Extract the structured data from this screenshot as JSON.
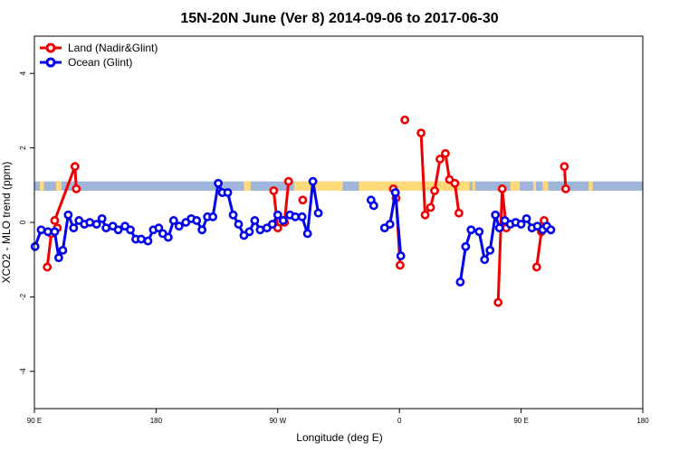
{
  "chart_data": {
    "type": "line",
    "title": "15N-20N June (Ver 8)   2014-09-06 to 2017-06-30",
    "xlabel": "Longitude (deg E)",
    "ylabel": "XCO2 - MLO trend (ppm)",
    "xlim": [
      90,
      450
    ],
    "ylim": [
      -5,
      5
    ],
    "x_ticks": [
      {
        "value": 90,
        "label": "90 E"
      },
      {
        "value": 180,
        "label": "180"
      },
      {
        "value": 270,
        "label": "90 W"
      },
      {
        "value": 360,
        "label": "0"
      },
      {
        "value": 450,
        "label": "90 E"
      },
      {
        "value": 540,
        "label": "180"
      }
    ],
    "x_range_display": [
      90,
      540
    ],
    "y_ticks": [
      {
        "value": -4,
        "label": "-4"
      },
      {
        "value": -2,
        "label": "-2"
      },
      {
        "value": 0,
        "label": "0"
      },
      {
        "value": 2,
        "label": "2"
      },
      {
        "value": 4,
        "label": "4"
      }
    ],
    "legend": {
      "position": "top-left",
      "entries": [
        {
          "label": "Land (Nadir&Glint)",
          "color": "#ee0000"
        },
        {
          "label": "Ocean (Glint)",
          "color": "#0000ee"
        }
      ]
    },
    "land_mask_band": {
      "y_range": [
        0.85,
        1.1
      ],
      "ocean_color": "#9fb6da",
      "land_color": "#ffd97a",
      "land_segments_x": [
        [
          94,
          97
        ],
        [
          106,
          110
        ],
        [
          226,
          228
        ],
        [
          245,
          250
        ],
        [
          282,
          318
        ],
        [
          330,
          412
        ],
        [
          414,
          416
        ],
        [
          442,
          449
        ],
        [
          459,
          461
        ],
        [
          466,
          470
        ],
        [
          500,
          503
        ]
      ]
    },
    "series": [
      {
        "name": "Land (Nadir&Glint)",
        "color": "#ee0000",
        "segments": [
          [
            [
              99.5,
              -1.2
            ],
            [
              102.5,
              -0.3
            ],
            [
              107,
              -0.15
            ]
          ],
          [
            [
              105,
              0.05
            ],
            [
              120,
              1.5
            ],
            [
              121,
              0.9
            ]
          ],
          [
            [
              267,
              0.85
            ],
            [
              270,
              -0.15
            ],
            [
              275,
              0.0
            ],
            [
              278,
              1.1
            ]
          ],
          [
            [
              288.5,
              0.6
            ]
          ],
          [
            [
              355.5,
              0.9
            ],
            [
              357.5,
              0.65
            ],
            [
              360.5,
              -1.15
            ]
          ],
          [
            [
              364,
              2.75
            ]
          ],
          [
            [
              376,
              2.4
            ],
            [
              379,
              0.2
            ],
            [
              383,
              0.4
            ],
            [
              386,
              0.85
            ],
            [
              390,
              1.7
            ],
            [
              394,
              1.85
            ],
            [
              397,
              1.15
            ],
            [
              401,
              1.05
            ],
            [
              404,
              0.25
            ]
          ],
          [
            [
              433,
              -2.15
            ],
            [
              436,
              0.9
            ],
            [
              439,
              -0.15
            ]
          ],
          [
            [
              461.5,
              -1.2
            ],
            [
              465,
              -0.25
            ],
            [
              467,
              0.05
            ]
          ],
          [
            [
              482,
              1.5
            ],
            [
              483,
              0.9
            ]
          ]
        ]
      },
      {
        "name": "Ocean (Glint)",
        "color": "#0000ee",
        "segments": [
          [
            [
              90.5,
              -0.65
            ],
            [
              95,
              -0.2
            ],
            [
              100,
              -0.25
            ],
            [
              105,
              -0.25
            ],
            [
              108,
              -0.95
            ],
            [
              111,
              -0.75
            ],
            [
              115,
              0.2
            ],
            [
              119,
              -0.15
            ],
            [
              123,
              0.05
            ],
            [
              127,
              -0.05
            ],
            [
              131,
              0.0
            ],
            [
              136,
              -0.05
            ],
            [
              140,
              0.1
            ],
            [
              143,
              -0.15
            ],
            [
              148,
              -0.1
            ],
            [
              152,
              -0.2
            ],
            [
              157,
              -0.1
            ],
            [
              161,
              -0.2
            ],
            [
              165,
              -0.45
            ],
            [
              169,
              -0.45
            ],
            [
              174,
              -0.5
            ],
            [
              178,
              -0.2
            ],
            [
              182,
              -0.15
            ],
            [
              185,
              -0.3
            ],
            [
              189,
              -0.4
            ],
            [
              193,
              0.05
            ],
            [
              197,
              -0.1
            ],
            [
              202,
              0.0
            ],
            [
              206,
              0.1
            ],
            [
              210,
              0.05
            ],
            [
              214,
              -0.2
            ],
            [
              218,
              0.15
            ],
            [
              222,
              0.15
            ],
            [
              226,
              1.05
            ],
            [
              229,
              0.8
            ],
            [
              233,
              0.8
            ],
            [
              237,
              0.2
            ],
            [
              241,
              -0.05
            ],
            [
              245,
              -0.35
            ],
            [
              249,
              -0.25
            ],
            [
              253,
              0.05
            ],
            [
              257,
              -0.2
            ],
            [
              262,
              -0.15
            ],
            [
              266,
              -0.05
            ],
            [
              270,
              0.2
            ],
            [
              274,
              0.05
            ],
            [
              279,
              0.2
            ],
            [
              283,
              0.15
            ],
            [
              288,
              0.15
            ],
            [
              292,
              -0.3
            ],
            [
              296,
              1.1
            ],
            [
              300,
              0.25
            ]
          ],
          [
            [
              339,
              0.6
            ],
            [
              341,
              0.45
            ]
          ],
          [
            [
              349,
              -0.15
            ],
            [
              353,
              -0.05
            ],
            [
              357,
              0.8
            ],
            [
              361,
              -0.9
            ]
          ],
          [
            [
              405,
              -1.6
            ],
            [
              409,
              -0.65
            ],
            [
              413,
              -0.2
            ],
            [
              419,
              -0.25
            ],
            [
              423,
              -1.0
            ],
            [
              427,
              -0.75
            ],
            [
              431,
              0.2
            ],
            [
              434,
              -0.15
            ],
            [
              438,
              0.05
            ],
            [
              442,
              -0.05
            ],
            [
              446,
              0.0
            ],
            [
              450,
              -0.05
            ],
            [
              454,
              0.1
            ],
            [
              458,
              -0.15
            ],
            [
              462,
              -0.1
            ],
            [
              466,
              -0.2
            ],
            [
              469,
              -0.1
            ],
            [
              472,
              -0.2
            ]
          ]
        ]
      }
    ]
  }
}
